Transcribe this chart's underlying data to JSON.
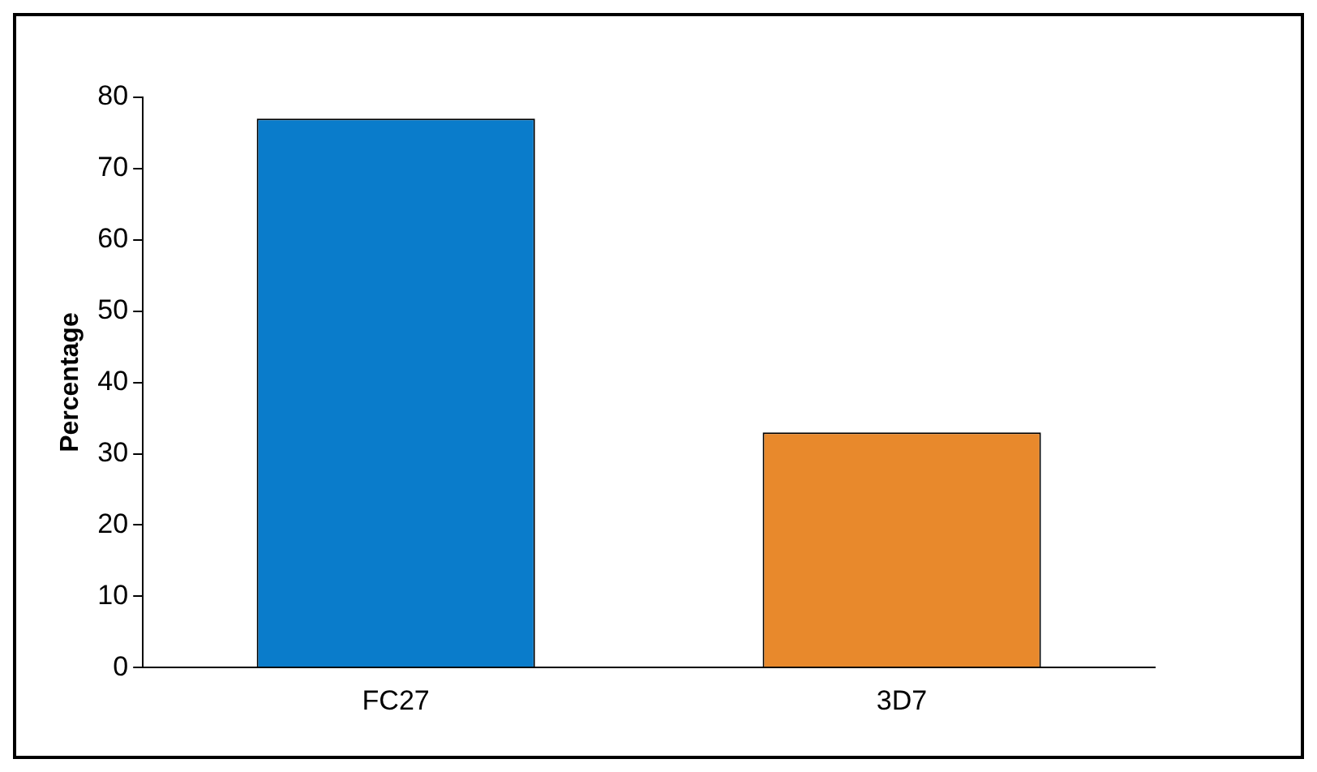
{
  "chart_data": {
    "type": "bar",
    "ylabel": "Percentage",
    "categories": [
      "FC27",
      "3D7"
    ],
    "values": [
      77,
      33
    ],
    "colors": [
      "#0a7ccb",
      "#e8892c"
    ],
    "ylim": [
      0,
      80
    ],
    "yticks": [
      0,
      10,
      20,
      30,
      40,
      50,
      60,
      70,
      80
    ],
    "grid": false,
    "legend": false
  }
}
